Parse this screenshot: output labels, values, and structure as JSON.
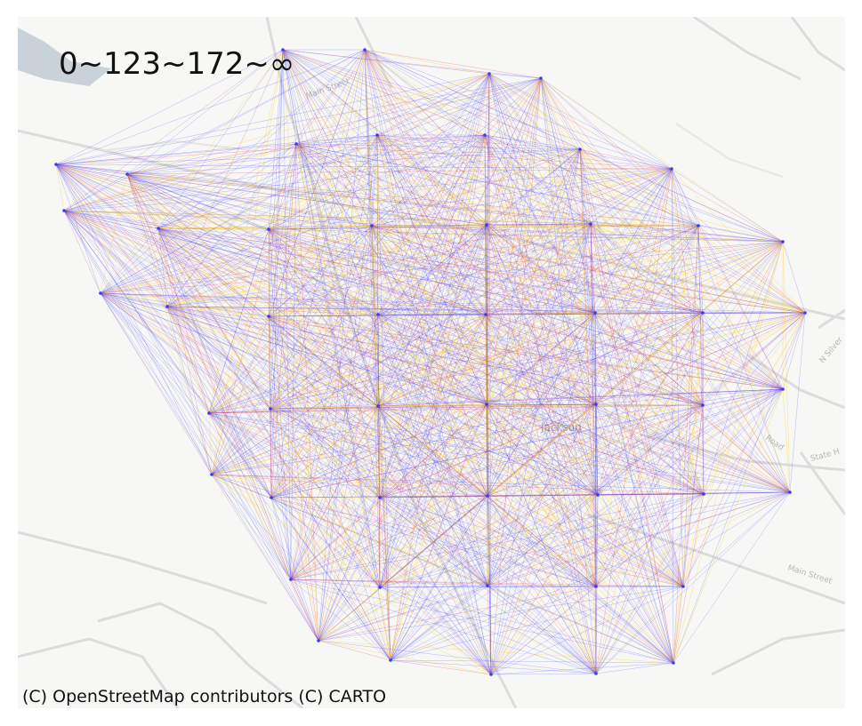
{
  "map": {
    "legend_title": "0~123~172~∞",
    "attribution": "(C) OpenStreetMap contributors (C) CARTO",
    "street_labels": [
      "Main Street",
      "State H",
      "N Silver",
      "Jackson",
      "Road",
      "Main Street"
    ],
    "bin_colors": {
      "low": "#3b3bff",
      "mid": "#d02050",
      "high": "#ffd21f"
    },
    "basemap_colors": {
      "land": "#f7f7f5",
      "road": "#d9d9d9",
      "water": "#c9d2d8"
    }
  }
}
